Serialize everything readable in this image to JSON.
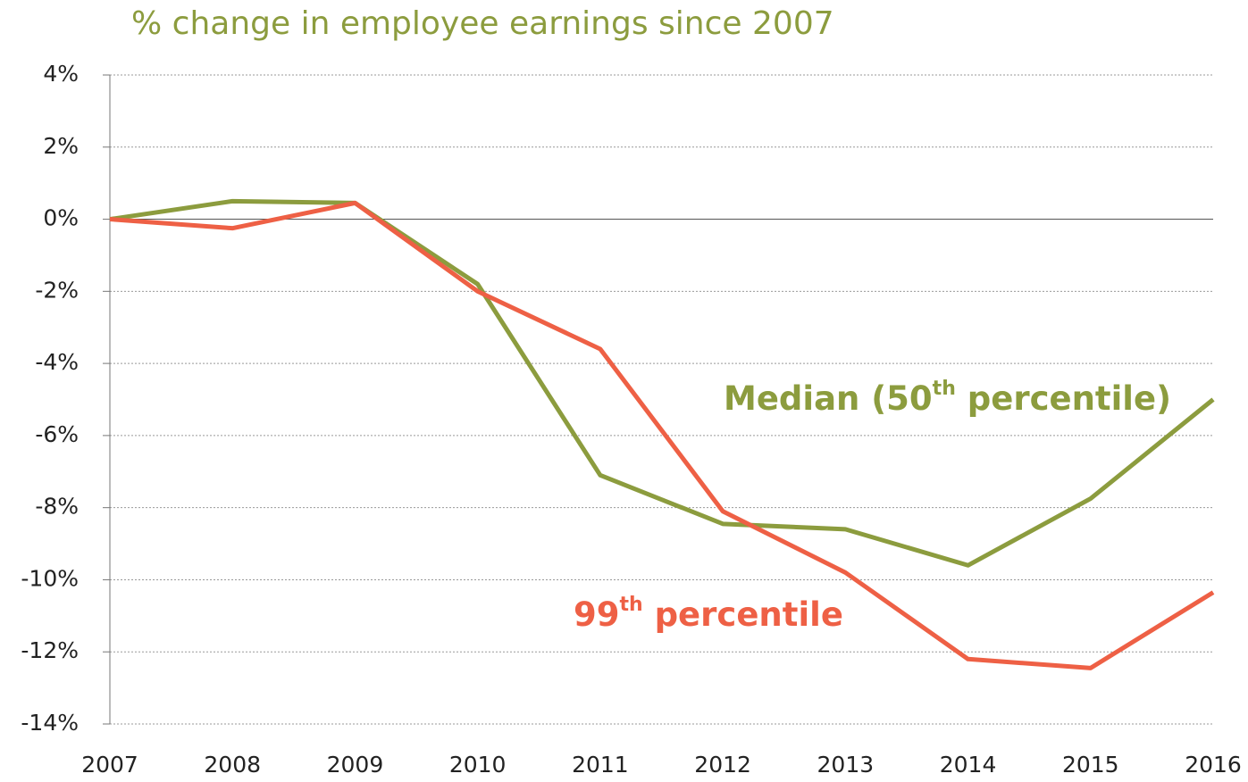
{
  "chart_data": {
    "type": "line",
    "title": "% change in employee earnings since 2007",
    "categories": [
      "2007",
      "2008",
      "2009",
      "2010",
      "2011",
      "2012",
      "2013",
      "2014",
      "2015",
      "2016"
    ],
    "series": [
      {
        "name": "Median (50th percentile)",
        "color": "#8c9c3e",
        "values": [
          0,
          0.5,
          0.45,
          -1.8,
          -7.1,
          -8.45,
          -8.6,
          -9.6,
          -7.75,
          -5.0
        ]
      },
      {
        "name": "99th percentile",
        "color": "#ee6045",
        "values": [
          0,
          -0.25,
          0.45,
          -2.0,
          -3.6,
          -8.1,
          -9.8,
          -12.2,
          -12.45,
          -10.35
        ]
      }
    ],
    "ylim": [
      -14,
      4
    ],
    "yticks": [
      {
        "value": -14,
        "label": "-14%"
      },
      {
        "value": -12,
        "label": "-12%"
      },
      {
        "value": -10,
        "label": "-10%"
      },
      {
        "value": -8,
        "label": "-8%"
      },
      {
        "value": -6,
        "label": "-6%"
      },
      {
        "value": -4,
        "label": "-4%"
      },
      {
        "value": -2,
        "label": "-2%"
      },
      {
        "value": 0,
        "label": "0%"
      },
      {
        "value": 2,
        "label": "2%"
      },
      {
        "value": 4,
        "label": "4%"
      }
    ],
    "grid": true
  }
}
